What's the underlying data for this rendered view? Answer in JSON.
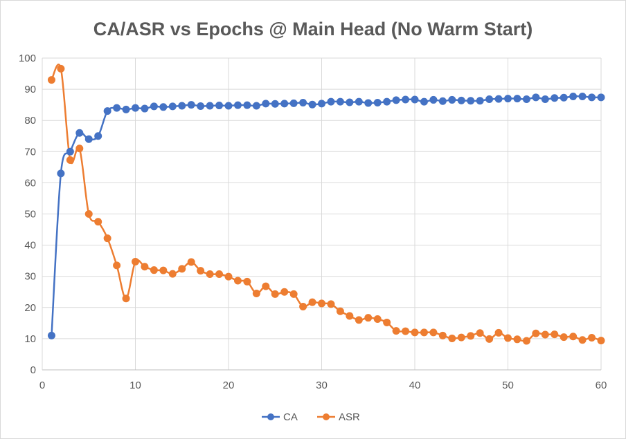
{
  "chart_data": {
    "type": "line",
    "title": "CA/ASR vs Epochs @ Main Head (No Warm Start)",
    "xlabel": "",
    "ylabel": "",
    "xlim": [
      0,
      60
    ],
    "ylim": [
      0,
      100
    ],
    "x_ticks": [
      0,
      10,
      20,
      30,
      40,
      50,
      60
    ],
    "y_ticks": [
      0,
      10,
      20,
      30,
      40,
      50,
      60,
      70,
      80,
      90,
      100
    ],
    "grid": "both",
    "legend": "bottom-center",
    "x": [
      1,
      2,
      3,
      4,
      5,
      6,
      7,
      8,
      9,
      10,
      11,
      12,
      13,
      14,
      15,
      16,
      17,
      18,
      19,
      20,
      21,
      22,
      23,
      24,
      25,
      26,
      27,
      28,
      29,
      30,
      31,
      32,
      33,
      34,
      35,
      36,
      37,
      38,
      39,
      40,
      41,
      42,
      43,
      44,
      45,
      46,
      47,
      48,
      49,
      50,
      51,
      52,
      53,
      54,
      55,
      56,
      57,
      58,
      59,
      60
    ],
    "series": [
      {
        "name": "CA",
        "color": "#4472C4",
        "values": [
          11,
          63,
          70,
          76,
          74,
          75,
          83,
          84,
          83.5,
          84,
          83.8,
          84.5,
          84.3,
          84.5,
          84.7,
          85,
          84.6,
          84.7,
          84.8,
          84.7,
          84.9,
          84.9,
          84.7,
          85.4,
          85.3,
          85.4,
          85.5,
          85.7,
          85.1,
          85.4,
          86,
          86,
          85.8,
          86,
          85.6,
          85.7,
          86,
          86.5,
          86.7,
          86.7,
          86,
          86.6,
          86.2,
          86.6,
          86.4,
          86.3,
          86.3,
          86.8,
          86.9,
          87,
          87,
          86.8,
          87.4,
          86.8,
          87.2,
          87.3,
          87.7,
          87.7,
          87.4,
          87.4
        ]
      },
      {
        "name": "ASR",
        "color": "#ED7D31",
        "values": [
          93,
          96.6,
          67.3,
          71,
          50,
          47.5,
          42.2,
          33.5,
          22.9,
          34.7,
          33.1,
          32,
          31.9,
          30.8,
          32.4,
          34.6,
          31.8,
          30.7,
          30.7,
          29.9,
          28.6,
          28.3,
          24.5,
          26.8,
          24.3,
          25,
          24.3,
          20.3,
          21.7,
          21.3,
          21.1,
          18.8,
          17.3,
          16,
          16.7,
          16.3,
          15.2,
          12.5,
          12.4,
          12,
          12,
          12,
          11,
          10.1,
          10.4,
          10.9,
          11.8,
          9.9,
          11.9,
          10.2,
          9.8,
          9.3,
          11.7,
          11.3,
          11.4,
          10.5,
          10.7,
          9.6,
          10.3,
          9.4
        ]
      }
    ]
  }
}
